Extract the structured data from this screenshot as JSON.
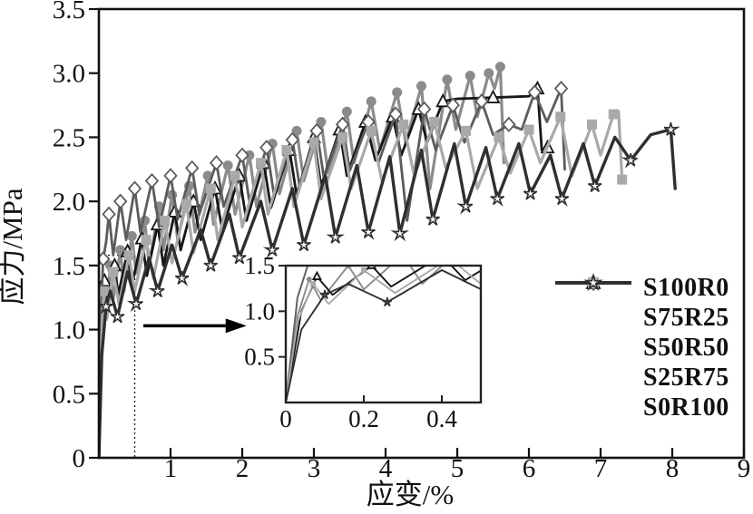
{
  "chart_data": {
    "type": "line",
    "title": "",
    "xlabel": "应变/%",
    "ylabel": "应力/MPa",
    "xlim": [
      0,
      9
    ],
    "ylim": [
      0,
      3.5
    ],
    "grid": false,
    "xticks": {
      "values": [
        1,
        2,
        3,
        4,
        5,
        6,
        7,
        8,
        9
      ],
      "labels": [
        "1",
        "2",
        "3",
        "4",
        "5",
        "6",
        "7",
        "8",
        "9"
      ]
    },
    "yticks": {
      "values": [
        0,
        0.5,
        1.0,
        1.5,
        2.0,
        2.5,
        3.0,
        3.5
      ],
      "labels": [
        "0",
        "0.5",
        "1.0",
        "1.5",
        "2.0",
        "2.5",
        "3.0",
        "3.5"
      ]
    },
    "legend_position": "right-center",
    "series": [
      {
        "name": "S100R0",
        "color": "#8b8b8b",
        "marker": "circle",
        "line_width": 3.2,
        "points": [
          [
            0,
            0
          ],
          [
            0.03,
            0.95
          ],
          [
            0.06,
            1.35
          ],
          [
            0.09,
            1.12
          ],
          [
            0.16,
            1.5
          ],
          [
            0.2,
            1.24
          ],
          [
            0.3,
            1.62
          ],
          [
            0.35,
            1.3
          ],
          [
            0.46,
            1.73
          ],
          [
            0.52,
            1.44
          ],
          [
            0.64,
            1.85
          ],
          [
            0.7,
            1.5
          ],
          [
            0.84,
            1.96
          ],
          [
            0.9,
            1.62
          ],
          [
            1.02,
            2.05
          ],
          [
            1.1,
            1.7
          ],
          [
            1.26,
            2.12
          ],
          [
            1.34,
            1.76
          ],
          [
            1.52,
            2.2
          ],
          [
            1.6,
            1.82
          ],
          [
            1.8,
            2.28
          ],
          [
            1.9,
            1.9
          ],
          [
            2.1,
            2.36
          ],
          [
            2.2,
            1.96
          ],
          [
            2.42,
            2.45
          ],
          [
            2.52,
            2.06
          ],
          [
            2.76,
            2.55
          ],
          [
            2.86,
            2.16
          ],
          [
            3.1,
            2.62
          ],
          [
            3.2,
            2.22
          ],
          [
            3.46,
            2.7
          ],
          [
            3.56,
            2.3
          ],
          [
            3.8,
            2.78
          ],
          [
            3.92,
            2.4
          ],
          [
            4.16,
            2.85
          ],
          [
            4.28,
            2.46
          ],
          [
            4.5,
            2.9
          ],
          [
            4.62,
            2.1
          ],
          [
            4.86,
            2.95
          ],
          [
            4.98,
            2.56
          ],
          [
            5.18,
            2.98
          ],
          [
            5.28,
            2.66
          ],
          [
            5.44,
            3.0
          ],
          [
            5.52,
            2.88
          ],
          [
            5.6,
            3.05
          ],
          [
            5.65,
            2.3
          ]
        ]
      },
      {
        "name": "S75R25",
        "color": "#161616",
        "marker": "triangle",
        "line_width": 2.8,
        "points": [
          [
            0,
            0
          ],
          [
            0.04,
            1.0
          ],
          [
            0.08,
            1.38
          ],
          [
            0.12,
            1.18
          ],
          [
            0.22,
            1.5
          ],
          [
            0.27,
            1.27
          ],
          [
            0.4,
            1.61
          ],
          [
            0.46,
            1.34
          ],
          [
            0.6,
            1.71
          ],
          [
            0.67,
            1.42
          ],
          [
            0.82,
            1.82
          ],
          [
            0.9,
            1.5
          ],
          [
            1.06,
            1.92
          ],
          [
            1.14,
            1.62
          ],
          [
            1.32,
            2.0
          ],
          [
            1.42,
            1.7
          ],
          [
            1.62,
            2.1
          ],
          [
            1.72,
            1.78
          ],
          [
            1.96,
            2.2
          ],
          [
            2.06,
            1.85
          ],
          [
            2.3,
            2.3
          ],
          [
            2.4,
            1.95
          ],
          [
            2.66,
            2.4
          ],
          [
            2.76,
            2.05
          ],
          [
            3.0,
            2.5
          ],
          [
            3.1,
            2.12
          ],
          [
            3.36,
            2.56
          ],
          [
            3.46,
            2.2
          ],
          [
            3.72,
            2.62
          ],
          [
            3.86,
            2.32
          ],
          [
            4.1,
            2.66
          ],
          [
            4.22,
            2.36
          ],
          [
            4.46,
            2.72
          ],
          [
            4.58,
            2.46
          ],
          [
            4.8,
            2.78
          ],
          [
            5.0,
            2.8
          ],
          [
            5.5,
            2.81
          ],
          [
            6.0,
            2.82
          ],
          [
            6.12,
            2.88
          ],
          [
            6.18,
            2.4
          ],
          [
            6.26,
            2.42
          ]
        ]
      },
      {
        "name": "S50R50",
        "color": "#5c5c5c",
        "marker": "diamond",
        "line_width": 2.8,
        "points": [
          [
            0,
            0
          ],
          [
            0.03,
            1.15
          ],
          [
            0.06,
            1.55
          ],
          [
            0.1,
            1.68
          ],
          [
            0.14,
            1.9
          ],
          [
            0.2,
            1.58
          ],
          [
            0.3,
            2.0
          ],
          [
            0.38,
            1.7
          ],
          [
            0.5,
            2.1
          ],
          [
            0.58,
            1.76
          ],
          [
            0.74,
            2.16
          ],
          [
            0.84,
            1.8
          ],
          [
            1.0,
            2.2
          ],
          [
            1.1,
            1.86
          ],
          [
            1.3,
            2.26
          ],
          [
            1.4,
            1.9
          ],
          [
            1.64,
            2.3
          ],
          [
            1.74,
            1.96
          ],
          [
            2.0,
            2.36
          ],
          [
            2.1,
            2.0
          ],
          [
            2.34,
            2.42
          ],
          [
            2.44,
            2.06
          ],
          [
            2.7,
            2.48
          ],
          [
            2.8,
            2.12
          ],
          [
            3.04,
            2.55
          ],
          [
            3.14,
            2.18
          ],
          [
            3.4,
            2.6
          ],
          [
            3.5,
            2.24
          ],
          [
            3.76,
            2.62
          ],
          [
            3.9,
            2.3
          ],
          [
            4.14,
            2.68
          ],
          [
            4.3,
            1.85
          ],
          [
            4.54,
            2.72
          ],
          [
            4.7,
            2.4
          ],
          [
            4.94,
            2.75
          ],
          [
            5.1,
            2.46
          ],
          [
            5.34,
            2.78
          ],
          [
            5.5,
            2.52
          ],
          [
            5.72,
            2.6
          ],
          [
            5.9,
            2.56
          ],
          [
            6.08,
            2.85
          ],
          [
            6.25,
            2.62
          ],
          [
            6.45,
            2.88
          ],
          [
            6.5,
            2.25
          ]
        ]
      },
      {
        "name": "S25R75",
        "color": "#a9a9a9",
        "marker": "square",
        "line_width": 3.2,
        "points": [
          [
            0,
            0
          ],
          [
            0.03,
            0.88
          ],
          [
            0.07,
            1.3
          ],
          [
            0.11,
            1.08
          ],
          [
            0.2,
            1.45
          ],
          [
            0.28,
            1.2
          ],
          [
            0.42,
            1.58
          ],
          [
            0.5,
            1.3
          ],
          [
            0.66,
            1.7
          ],
          [
            0.76,
            1.4
          ],
          [
            0.92,
            1.85
          ],
          [
            1.02,
            1.52
          ],
          [
            1.22,
            1.98
          ],
          [
            1.32,
            1.6
          ],
          [
            1.56,
            2.1
          ],
          [
            1.66,
            1.7
          ],
          [
            1.9,
            2.2
          ],
          [
            2.0,
            1.8
          ],
          [
            2.26,
            2.3
          ],
          [
            2.36,
            1.9
          ],
          [
            2.62,
            2.4
          ],
          [
            2.72,
            1.96
          ],
          [
            3.0,
            2.46
          ],
          [
            3.1,
            2.02
          ],
          [
            3.4,
            2.5
          ],
          [
            3.52,
            2.1
          ],
          [
            3.8,
            2.55
          ],
          [
            3.95,
            2.16
          ],
          [
            4.25,
            2.6
          ],
          [
            4.4,
            2.2
          ],
          [
            4.68,
            2.62
          ],
          [
            4.84,
            2.26
          ],
          [
            5.12,
            2.55
          ],
          [
            5.28,
            2.1
          ],
          [
            5.58,
            2.5
          ],
          [
            5.74,
            2.22
          ],
          [
            6.0,
            2.56
          ],
          [
            6.16,
            2.3
          ],
          [
            6.44,
            2.66
          ],
          [
            6.6,
            2.2
          ],
          [
            6.88,
            2.6
          ],
          [
            7.0,
            2.36
          ],
          [
            7.18,
            2.68
          ],
          [
            7.25,
            2.7
          ],
          [
            7.3,
            2.17
          ]
        ]
      },
      {
        "name": "S0R100",
        "color": "#2f2f2f",
        "marker": "star",
        "line_width": 3.4,
        "points": [
          [
            0,
            0
          ],
          [
            0.04,
            0.8
          ],
          [
            0.1,
            1.18
          ],
          [
            0.16,
            1.3
          ],
          [
            0.26,
            1.1
          ],
          [
            0.4,
            1.45
          ],
          [
            0.52,
            1.2
          ],
          [
            0.7,
            1.56
          ],
          [
            0.82,
            1.3
          ],
          [
            1.02,
            1.66
          ],
          [
            1.16,
            1.4
          ],
          [
            1.42,
            1.78
          ],
          [
            1.56,
            1.5
          ],
          [
            1.82,
            1.9
          ],
          [
            1.96,
            1.56
          ],
          [
            2.26,
            2.0
          ],
          [
            2.42,
            1.62
          ],
          [
            2.7,
            2.1
          ],
          [
            2.86,
            1.66
          ],
          [
            3.16,
            2.2
          ],
          [
            3.3,
            1.72
          ],
          [
            3.6,
            2.28
          ],
          [
            3.76,
            1.76
          ],
          [
            4.06,
            2.35
          ],
          [
            4.2,
            1.75
          ],
          [
            4.5,
            2.4
          ],
          [
            4.66,
            1.86
          ],
          [
            4.96,
            2.45
          ],
          [
            5.12,
            1.96
          ],
          [
            5.4,
            2.42
          ],
          [
            5.56,
            2.02
          ],
          [
            5.86,
            2.45
          ],
          [
            6.02,
            2.06
          ],
          [
            6.3,
            2.36
          ],
          [
            6.46,
            2.02
          ],
          [
            6.76,
            2.45
          ],
          [
            6.92,
            2.12
          ],
          [
            7.2,
            2.5
          ],
          [
            7.42,
            2.32
          ],
          [
            7.7,
            2.52
          ],
          [
            7.98,
            2.56
          ],
          [
            8.04,
            2.1
          ]
        ]
      }
    ],
    "inset": {
      "xlim": [
        0,
        0.5
      ],
      "ylim": [
        0,
        1.5
      ],
      "xticks": {
        "values": [
          0,
          0.2,
          0.4
        ],
        "labels": [
          "0",
          "0.2",
          "0.4"
        ]
      },
      "yticks": {
        "values": [
          0.5,
          1.0,
          1.5
        ],
        "labels": [
          "0.5",
          "1.0",
          "1.5"
        ]
      },
      "description": "magnified view of 0-0.5% strain region"
    },
    "annotations": {
      "zoom_box": {
        "x": [
          0,
          0.5
        ],
        "y": [
          0,
          1.58
        ],
        "style": "dotted"
      },
      "arrow": {
        "from": [
          0.62,
          1.03
        ],
        "to": [
          2.06,
          1.03
        ]
      }
    }
  }
}
